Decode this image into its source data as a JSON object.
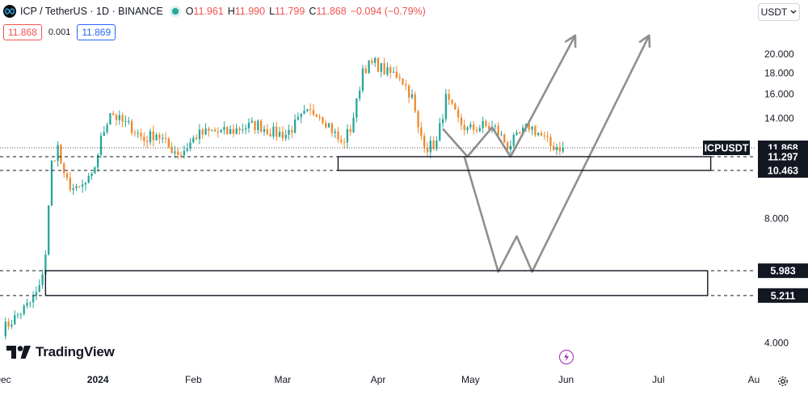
{
  "header": {
    "symbol": "ICP / TetherUS · 1D · BINANCE",
    "open_key": "O",
    "open": "11.961",
    "high_key": "H",
    "high": "11.990",
    "low_key": "L",
    "low": "11.799",
    "close_key": "C",
    "close": "11.868",
    "change": "−0.094 (−0.79%)"
  },
  "quote": {
    "bid": "11.868",
    "spread": "0.001",
    "ask": "11.869"
  },
  "currency": "USDT",
  "brand": "TradingView",
  "colors": {
    "up": "#26a69a",
    "down": "#f0882c",
    "bid": "#ef5350",
    "ask": "#2962ff",
    "drawing": "#8f8f8f"
  },
  "chart_data": {
    "type": "candlestick",
    "symbol": "ICPUSDT",
    "y_scale": "log",
    "ylim": [
      3.6,
      23
    ],
    "xlim": [
      "2023-12-01",
      "2024-08-01"
    ],
    "y_ticks": [
      "4.000",
      "8.000",
      "14.000",
      "16.000",
      "18.000",
      "20.000"
    ],
    "x_ticks": [
      {
        "label": "Dec",
        "date": "2023-12-01"
      },
      {
        "label": "2024",
        "date": "2024-01-01"
      },
      {
        "label": "Feb",
        "date": "2024-02-01"
      },
      {
        "label": "Mar",
        "date": "2024-03-01"
      },
      {
        "label": "Apr",
        "date": "2024-04-01"
      },
      {
        "label": "May",
        "date": "2024-05-01"
      },
      {
        "label": "Jun",
        "date": "2024-06-01"
      },
      {
        "label": "Jul",
        "date": "2024-07-01"
      },
      {
        "label": "Au",
        "date": "2024-08-01"
      }
    ],
    "last_price": {
      "label": "ICPUSDT",
      "value": "11.868"
    },
    "level_labels": [
      "11.297",
      "10.463",
      "5.983",
      "5.211"
    ],
    "levels": [
      11.297,
      10.463,
      5.983,
      5.211
    ],
    "zones": [
      {
        "from": "2024-03-19",
        "to": "2024-07-18",
        "low": 10.463,
        "high": 11.297
      },
      {
        "from": "2023-12-15",
        "to": "2024-07-17",
        "low": 5.211,
        "high": 5.983
      }
    ],
    "price_path": [
      [
        "2023-12-01",
        4.3
      ],
      [
        "2023-12-05",
        4.6
      ],
      [
        "2023-12-10",
        5.0
      ],
      [
        "2023-12-13",
        5.4
      ],
      [
        "2023-12-15",
        6.6
      ],
      [
        "2023-12-17",
        10.9
      ],
      [
        "2023-12-19",
        11.9
      ],
      [
        "2023-12-21",
        10.0
      ],
      [
        "2023-12-25",
        9.3
      ],
      [
        "2023-12-30",
        10.0
      ],
      [
        "2024-01-02",
        12.4
      ],
      [
        "2024-01-05",
        14.6
      ],
      [
        "2024-01-08",
        13.8
      ],
      [
        "2024-01-12",
        13.3
      ],
      [
        "2024-01-16",
        12.4
      ],
      [
        "2024-01-20",
        12.9
      ],
      [
        "2024-01-24",
        11.9
      ],
      [
        "2024-01-28",
        11.5
      ],
      [
        "2024-02-02",
        12.7
      ],
      [
        "2024-02-07",
        13.0
      ],
      [
        "2024-02-12",
        12.9
      ],
      [
        "2024-02-17",
        13.3
      ],
      [
        "2024-02-22",
        13.5
      ],
      [
        "2024-02-27",
        12.9
      ],
      [
        "2024-03-02",
        12.8
      ],
      [
        "2024-03-08",
        14.2
      ],
      [
        "2024-03-12",
        14.6
      ],
      [
        "2024-03-16",
        13.5
      ],
      [
        "2024-03-20",
        12.1
      ],
      [
        "2024-03-23",
        13.2
      ],
      [
        "2024-03-25",
        15.2
      ],
      [
        "2024-03-27",
        18.5
      ],
      [
        "2024-03-31",
        19.0
      ],
      [
        "2024-04-04",
        18.0
      ],
      [
        "2024-04-08",
        17.8
      ],
      [
        "2024-04-12",
        15.7
      ],
      [
        "2024-04-14",
        13.1
      ],
      [
        "2024-04-17",
        11.9
      ],
      [
        "2024-04-20",
        12.2
      ],
      [
        "2024-04-23",
        15.6
      ],
      [
        "2024-04-27",
        13.8
      ],
      [
        "2024-04-30",
        13.1
      ],
      [
        "2024-05-05",
        13.4
      ],
      [
        "2024-05-09",
        13.2
      ],
      [
        "2024-05-13",
        12.0
      ],
      [
        "2024-05-16",
        12.5
      ],
      [
        "2024-05-20",
        13.4
      ],
      [
        "2024-05-23",
        12.9
      ],
      [
        "2024-05-27",
        12.0
      ],
      [
        "2024-05-31",
        11.868
      ]
    ],
    "drawings": [
      {
        "name": "zigzag-arrow-left",
        "points": [
          [
            "2024-04-22",
            13.2
          ],
          [
            "2024-04-30",
            11.3
          ],
          [
            "2024-05-08",
            13.3
          ],
          [
            "2024-05-14",
            11.3
          ],
          [
            "2024-06-04",
            22.2
          ]
        ]
      },
      {
        "name": "w-pattern-arrow-right",
        "points": [
          [
            "2024-04-29",
            11.3
          ],
          [
            "2024-05-10",
            5.95
          ],
          [
            "2024-05-16",
            7.25
          ],
          [
            "2024-05-21",
            5.95
          ],
          [
            "2024-06-28",
            22.2
          ]
        ]
      }
    ]
  }
}
